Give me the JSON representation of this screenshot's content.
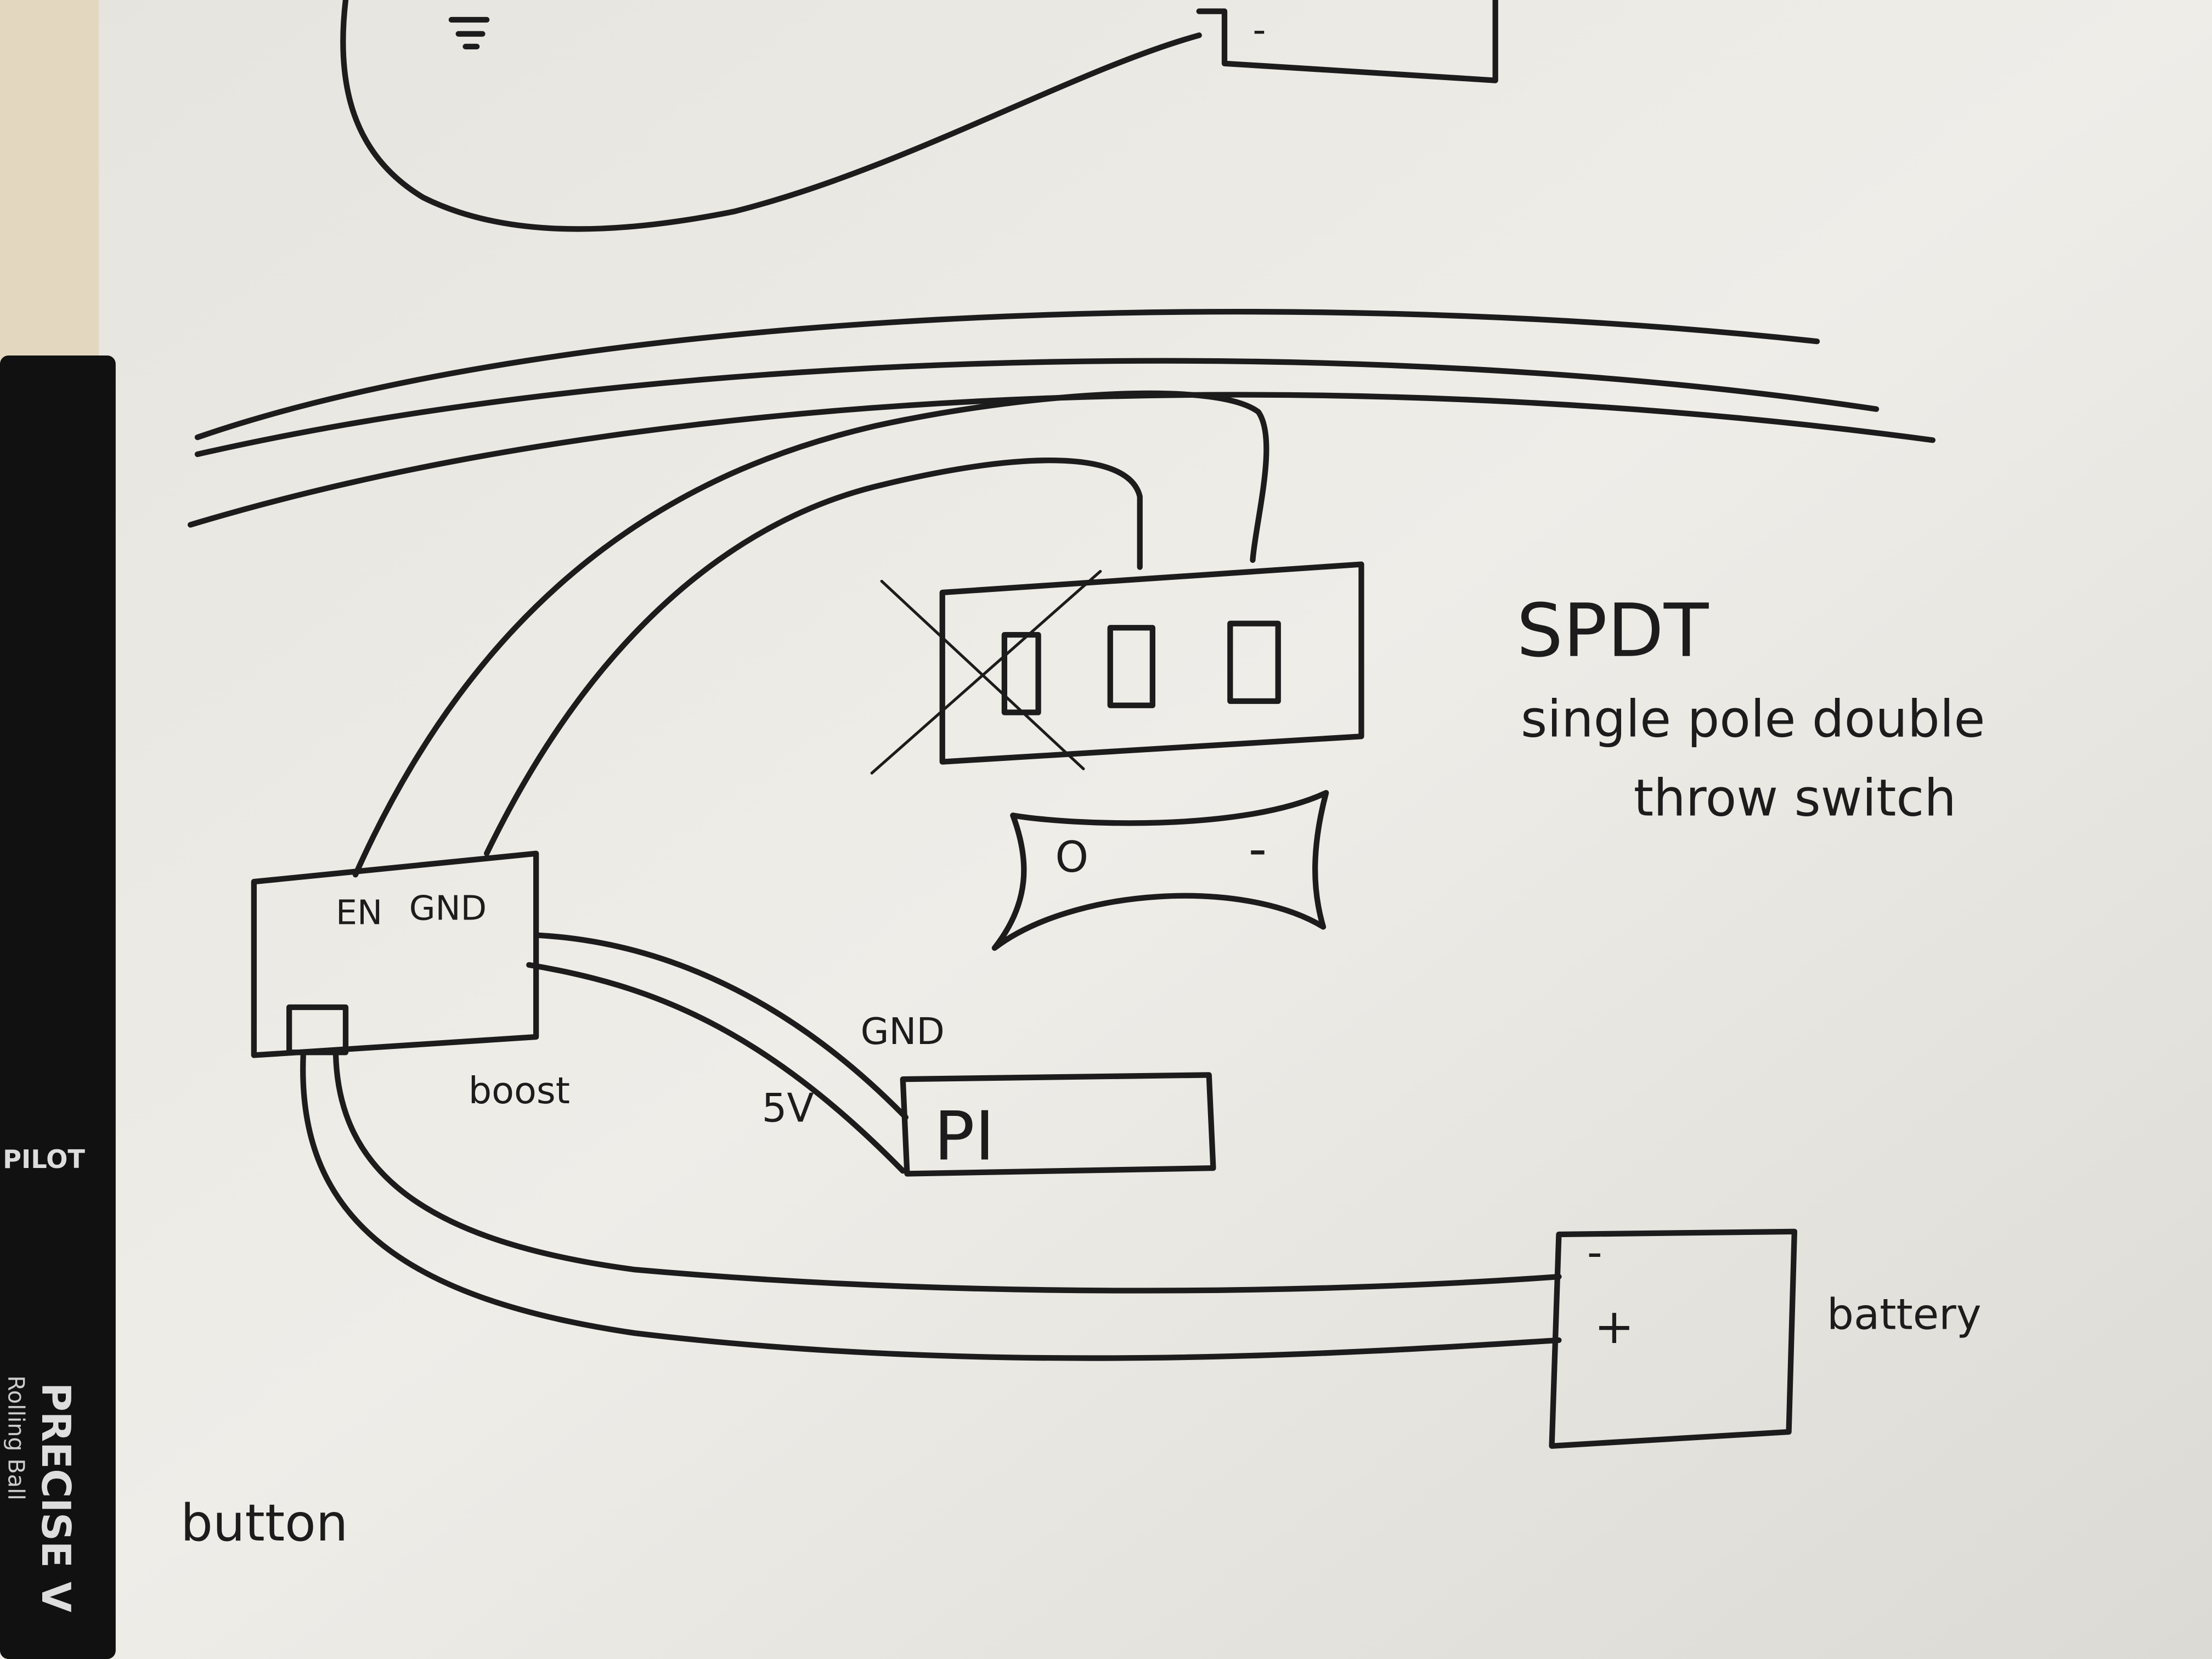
{
  "spdt": {
    "title": "SPDT",
    "line1": "single pole double",
    "line2": "throw switch"
  },
  "boost": {
    "label": "boost",
    "pin_en": "EN",
    "pin_gnd": "GND"
  },
  "pi": {
    "label": "PI",
    "pin_gnd": "GND",
    "pin_5v": "5V"
  },
  "battery": {
    "label": "battery",
    "minus": "-",
    "plus": "+"
  },
  "switch_lever": {
    "circle": "O",
    "dash": "-"
  },
  "top_sketch": {
    "minus": "-"
  },
  "button": "button",
  "pen": {
    "brand": "PILOT",
    "model": "PRECISE V",
    "kind": "Rolling Ball"
  }
}
